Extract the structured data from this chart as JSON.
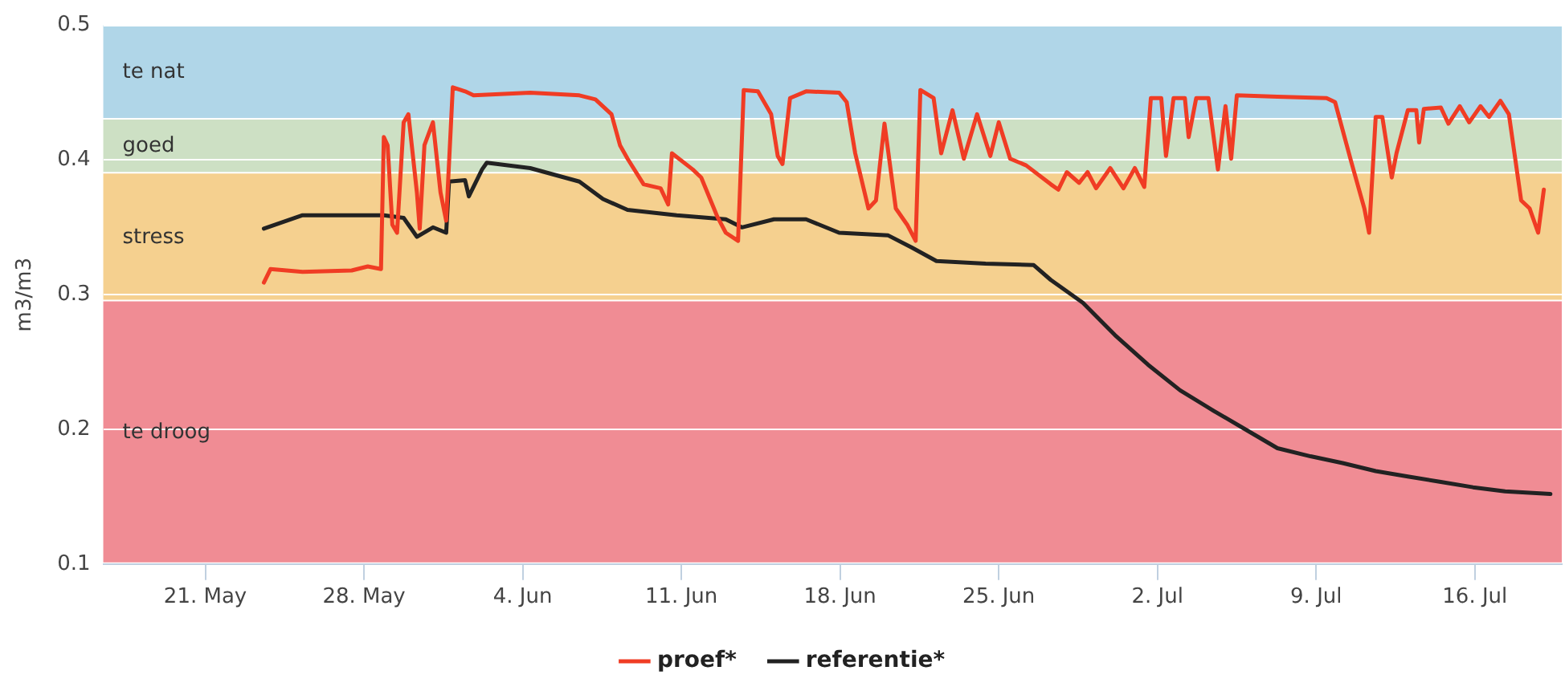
{
  "chart_data": {
    "type": "line",
    "ylabel": "m3/m3",
    "xlim": [
      "--05-16T12:00",
      "--07-19T20:00"
    ],
    "xticks": [
      {
        "value": "--05-21",
        "label": "21. May"
      },
      {
        "value": "--05-28",
        "label": "28. May"
      },
      {
        "value": "--06-04",
        "label": "4. Jun"
      },
      {
        "value": "--06-11",
        "label": "11. Jun"
      },
      {
        "value": "--06-18",
        "label": "18. Jun"
      },
      {
        "value": "--06-25",
        "label": "25. Jun"
      },
      {
        "value": "--07-02",
        "label": "2. Jul"
      },
      {
        "value": "--07-09",
        "label": "9. Jul"
      },
      {
        "value": "--07-16",
        "label": "16. Jul"
      }
    ],
    "ylim": [
      0.1,
      0.5
    ],
    "yticks": [
      0.1,
      0.2,
      0.3,
      0.4,
      0.5
    ],
    "grid": "y",
    "legend": "bottom",
    "marker": "none",
    "line_style": "solid",
    "bands": [
      {
        "axis": "y",
        "from": 0.43,
        "to": 0.5,
        "label": "te nat",
        "color": "#b0d6e8"
      },
      {
        "axis": "y",
        "from": 0.39,
        "to": 0.43,
        "label": "goed",
        "color": "#cde0c4"
      },
      {
        "axis": "y",
        "from": 0.295,
        "to": 0.39,
        "label": "stress",
        "color": "#f5d08f"
      },
      {
        "axis": "y",
        "from": 0.1,
        "to": 0.295,
        "label": "te droog",
        "color": "#f08c94"
      }
    ],
    "series": [
      {
        "name": "proef*",
        "color": "#f03c24",
        "x": [
          "--05-23T14:00",
          "--05-23T21:00",
          "--05-25T07:00",
          "--05-27T11:00",
          "--05-28T04:00",
          "--05-28T18:00",
          "--05-28T21:00",
          "--05-29T01:00",
          "--05-29T06:00",
          "--05-29T11:00",
          "--05-29T18:00",
          "--05-29T23:00",
          "--05-30T08:00",
          "--05-30T11:00",
          "--05-30T16:00",
          "--05-31T01:00",
          "--05-31T09:00",
          "--05-31T15:00",
          "--05-31T22:00",
          "--06-01T11:00",
          "--06-01T20:00",
          "--06-04T08:00",
          "--06-06T12:00",
          "--06-07T05:00",
          "--06-07T22:00",
          "--06-08T07:00",
          "--06-08T15:00",
          "--06-09T08:00",
          "--06-10T02:00",
          "--06-10T10:00",
          "--06-10T14:00",
          "--06-11T12:00",
          "--06-11T21:00",
          "--06-12T14:00",
          "--06-12T23:00",
          "--06-13T12:00",
          "--06-13T18:00",
          "--06-14T09:00",
          "--06-14T23:00",
          "--06-15T06:00",
          "--06-15T11:00",
          "--06-15T19:00",
          "--06-16T12:00",
          "--06-17T23:00",
          "--06-18T07:00",
          "--06-18T16:00",
          "--06-19T06:00",
          "--06-19T14:00",
          "--06-19T23:00",
          "--06-20T11:00",
          "--06-20T23:00",
          "--06-21T08:00",
          "--06-21T13:00",
          "--06-22T03:00",
          "--06-22T11:00",
          "--06-22T23:00",
          "--06-23T11:00",
          "--06-24T01:00",
          "--06-24T15:00",
          "--06-25T00:00",
          "--06-25T12:00",
          "--06-26T05:00",
          "--06-27T07:00",
          "--06-27T15:00",
          "--06-28T00:00",
          "--06-28T13:00",
          "--06-28T22:00",
          "--06-29T07:00",
          "--06-29T22:00",
          "--06-30T12:00",
          "--07-01T00:00",
          "--07-01T10:00",
          "--07-01T17:00",
          "--07-02T04:00",
          "--07-02T09:00",
          "--07-02T17:00",
          "--07-03T05:00",
          "--07-03T09:00",
          "--07-03T17:00",
          "--07-04T06:00",
          "--07-04T16:00",
          "--07-05T00:00",
          "--07-05T06:00",
          "--07-05T12:00",
          "--07-07T07:00",
          "--07-09T11:00",
          "--07-09T20:00",
          "--07-10T13:00",
          "--07-11T03:00",
          "--07-11T08:00",
          "--07-11T15:00",
          "--07-11T22:00",
          "--07-12T08:00",
          "--07-12T13:00",
          "--07-13T01:00",
          "--07-13T10:00",
          "--07-13T13:00",
          "--07-13T18:00",
          "--07-14T12:00",
          "--07-14T20:00",
          "--07-15T08:00",
          "--07-15T18:00",
          "--07-16T06:00",
          "--07-16T15:00",
          "--07-17T03:00",
          "--07-17T12:00",
          "--07-18T01:00",
          "--07-18T10:00",
          "--07-18T19:00",
          "--07-19T01:00"
        ],
        "values": [
          0.309,
          0.319,
          0.317,
          0.318,
          0.321,
          0.319,
          0.417,
          0.411,
          0.352,
          0.346,
          0.428,
          0.434,
          0.376,
          0.349,
          0.411,
          0.428,
          0.376,
          0.355,
          0.454,
          0.451,
          0.448,
          0.45,
          0.448,
          0.445,
          0.434,
          0.411,
          0.401,
          0.382,
          0.379,
          0.367,
          0.405,
          0.393,
          0.387,
          0.358,
          0.346,
          0.34,
          0.452,
          0.451,
          0.434,
          0.403,
          0.397,
          0.446,
          0.451,
          0.45,
          0.443,
          0.405,
          0.364,
          0.37,
          0.427,
          0.364,
          0.352,
          0.34,
          0.452,
          0.446,
          0.405,
          0.437,
          0.401,
          0.434,
          0.403,
          0.428,
          0.401,
          0.396,
          0.382,
          0.378,
          0.391,
          0.383,
          0.391,
          0.379,
          0.394,
          0.379,
          0.394,
          0.38,
          0.446,
          0.446,
          0.403,
          0.446,
          0.446,
          0.417,
          0.446,
          0.446,
          0.393,
          0.44,
          0.401,
          0.448,
          0.447,
          0.446,
          0.443,
          0.399,
          0.364,
          0.346,
          0.432,
          0.432,
          0.387,
          0.405,
          0.437,
          0.437,
          0.413,
          0.438,
          0.439,
          0.427,
          0.44,
          0.428,
          0.44,
          0.432,
          0.444,
          0.434,
          0.37,
          0.364,
          0.346,
          0.378
        ]
      },
      {
        "name": "referentie*",
        "color": "#222222",
        "x": [
          "--05-23T14:00",
          "--05-25T07:00",
          "--05-28T21:00",
          "--05-29T18:00",
          "--05-30T08:00",
          "--05-31T01:00",
          "--05-31T15:00",
          "--05-31T18:00",
          "--06-01T11:00",
          "--06-01T15:00",
          "--06-02T05:00",
          "--06-02T10:00",
          "--06-04T08:00",
          "--06-06T12:00",
          "--06-07T13:00",
          "--06-08T15:00",
          "--06-10T19:00",
          "--06-12T23:00",
          "--06-13T16:00",
          "--06-15T02:00",
          "--06-16T12:00",
          "--06-17T23:00",
          "--06-20T03:00",
          "--06-21T04:00",
          "--06-22T06:00",
          "--06-24T10:00",
          "--06-26T13:00",
          "--06-27T07:00",
          "--06-28T17:00",
          "--06-30T03:00",
          "--07-01T14:00",
          "--07-03T00:00",
          "--07-04T11:00",
          "--07-05T21:00",
          "--07-07T07:00",
          "--07-08T18:00",
          "--07-10T04:00",
          "--07-11T15:00",
          "--07-13T01:00",
          "--07-14T12:00",
          "--07-15T22:00",
          "--07-17T08:00",
          "--07-19T08:00"
        ],
        "values": [
          0.349,
          0.359,
          0.359,
          0.357,
          0.343,
          0.35,
          0.346,
          0.384,
          0.385,
          0.373,
          0.393,
          0.398,
          0.394,
          0.384,
          0.371,
          0.363,
          0.359,
          0.356,
          0.35,
          0.356,
          0.356,
          0.346,
          0.344,
          0.335,
          0.325,
          0.323,
          0.322,
          0.311,
          0.294,
          0.27,
          0.248,
          0.229,
          0.214,
          0.2,
          0.186,
          0.18,
          0.175,
          0.169,
          0.165,
          0.161,
          0.157,
          0.154,
          0.152
        ]
      }
    ]
  }
}
